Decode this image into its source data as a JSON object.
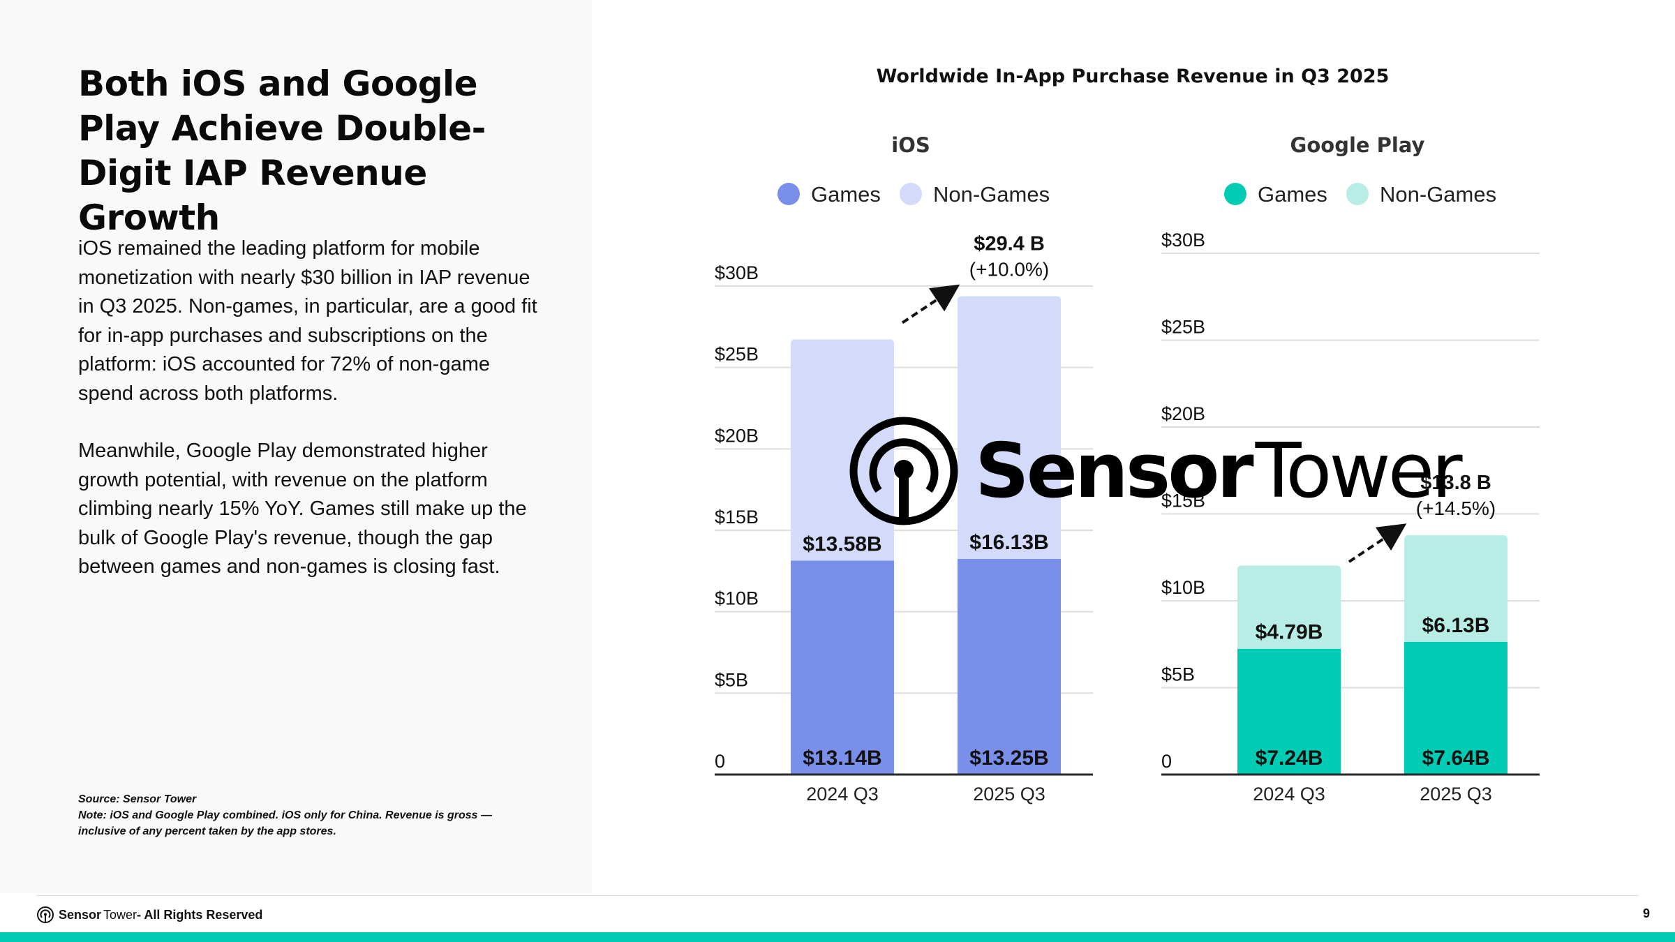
{
  "slide": {
    "headline": "Both iOS and Google Play Achieve Double-Digit IAP Revenue Growth",
    "paragraphs": [
      "iOS remained the leading platform for mobile monetization with nearly $30 billion in IAP revenue in Q3 2025. Non-games, in particular, are a good fit for in-app purchases and subscriptions on the platform: iOS accounted for 72% of non-game spend across both platforms.",
      "Meanwhile, Google Play demonstrated higher growth potential, with revenue on the platform climbing nearly 15% YoY. Games still make up the bulk of Google Play's revenue, though the gap between games and non-games is closing fast."
    ],
    "source": "Source: Sensor Tower",
    "note": "Note: iOS and Google Play combined. iOS only for China. Revenue is gross — inclusive of any percent taken by the app stores.",
    "watermark": {
      "word1": "Sensor",
      "word2": "Tower",
      "icon": "sensor-tower-logo-icon"
    },
    "footer": {
      "brand_word1": "Sensor",
      "brand_word2": "Tower",
      "rights": " - All Rights Reserved",
      "page_number": "9",
      "icon": "sensor-tower-logo-icon"
    }
  },
  "chart_data": {
    "type": "bar",
    "stacked": true,
    "title": "Worldwide In-App Purchase Revenue in Q3 2025",
    "panels": [
      {
        "title": "iOS",
        "categories": [
          "2024 Q3",
          "2025 Q3"
        ],
        "series": [
          {
            "name": "Games",
            "color": "#7a8fea",
            "values": [
              13.14,
              13.25
            ],
            "labels": [
              "$13.14B",
              "$13.25B"
            ]
          },
          {
            "name": "Non-Games",
            "color": "#d4daf9",
            "values": [
              13.58,
              16.13
            ],
            "labels": [
              "$13.58B",
              "$16.13B"
            ]
          }
        ],
        "ylim": [
          0,
          30
        ],
        "yticks": [
          0,
          5,
          10,
          15,
          20,
          25,
          30
        ],
        "ytick_labels": [
          "0",
          "$5B",
          "$10B",
          "$15B",
          "$20B",
          "$25B",
          "$30B"
        ],
        "total_label": "$29.4 B",
        "growth_label": "(+10.0%)",
        "grid": true
      },
      {
        "title": "Google Play",
        "categories": [
          "2024 Q3",
          "2025 Q3"
        ],
        "series": [
          {
            "name": "Games",
            "color": "#00ccb4",
            "values": [
              7.24,
              7.64
            ],
            "labels": [
              "$7.24B",
              "$7.64B"
            ]
          },
          {
            "name": "Non-Games",
            "color": "#b7ede4",
            "values": [
              4.79,
              6.13
            ],
            "labels": [
              "$4.79B",
              "$6.13B"
            ]
          }
        ],
        "ylim": [
          0,
          30
        ],
        "yticks": [
          0,
          5,
          10,
          15,
          20,
          25,
          30
        ],
        "ytick_labels": [
          "0",
          "$5B",
          "$10B",
          "$15B",
          "$20B",
          "$25B",
          "$30B"
        ],
        "total_label": "$13.8 B",
        "growth_label": "(+14.5%)",
        "grid": true
      }
    ],
    "legend": "top"
  }
}
